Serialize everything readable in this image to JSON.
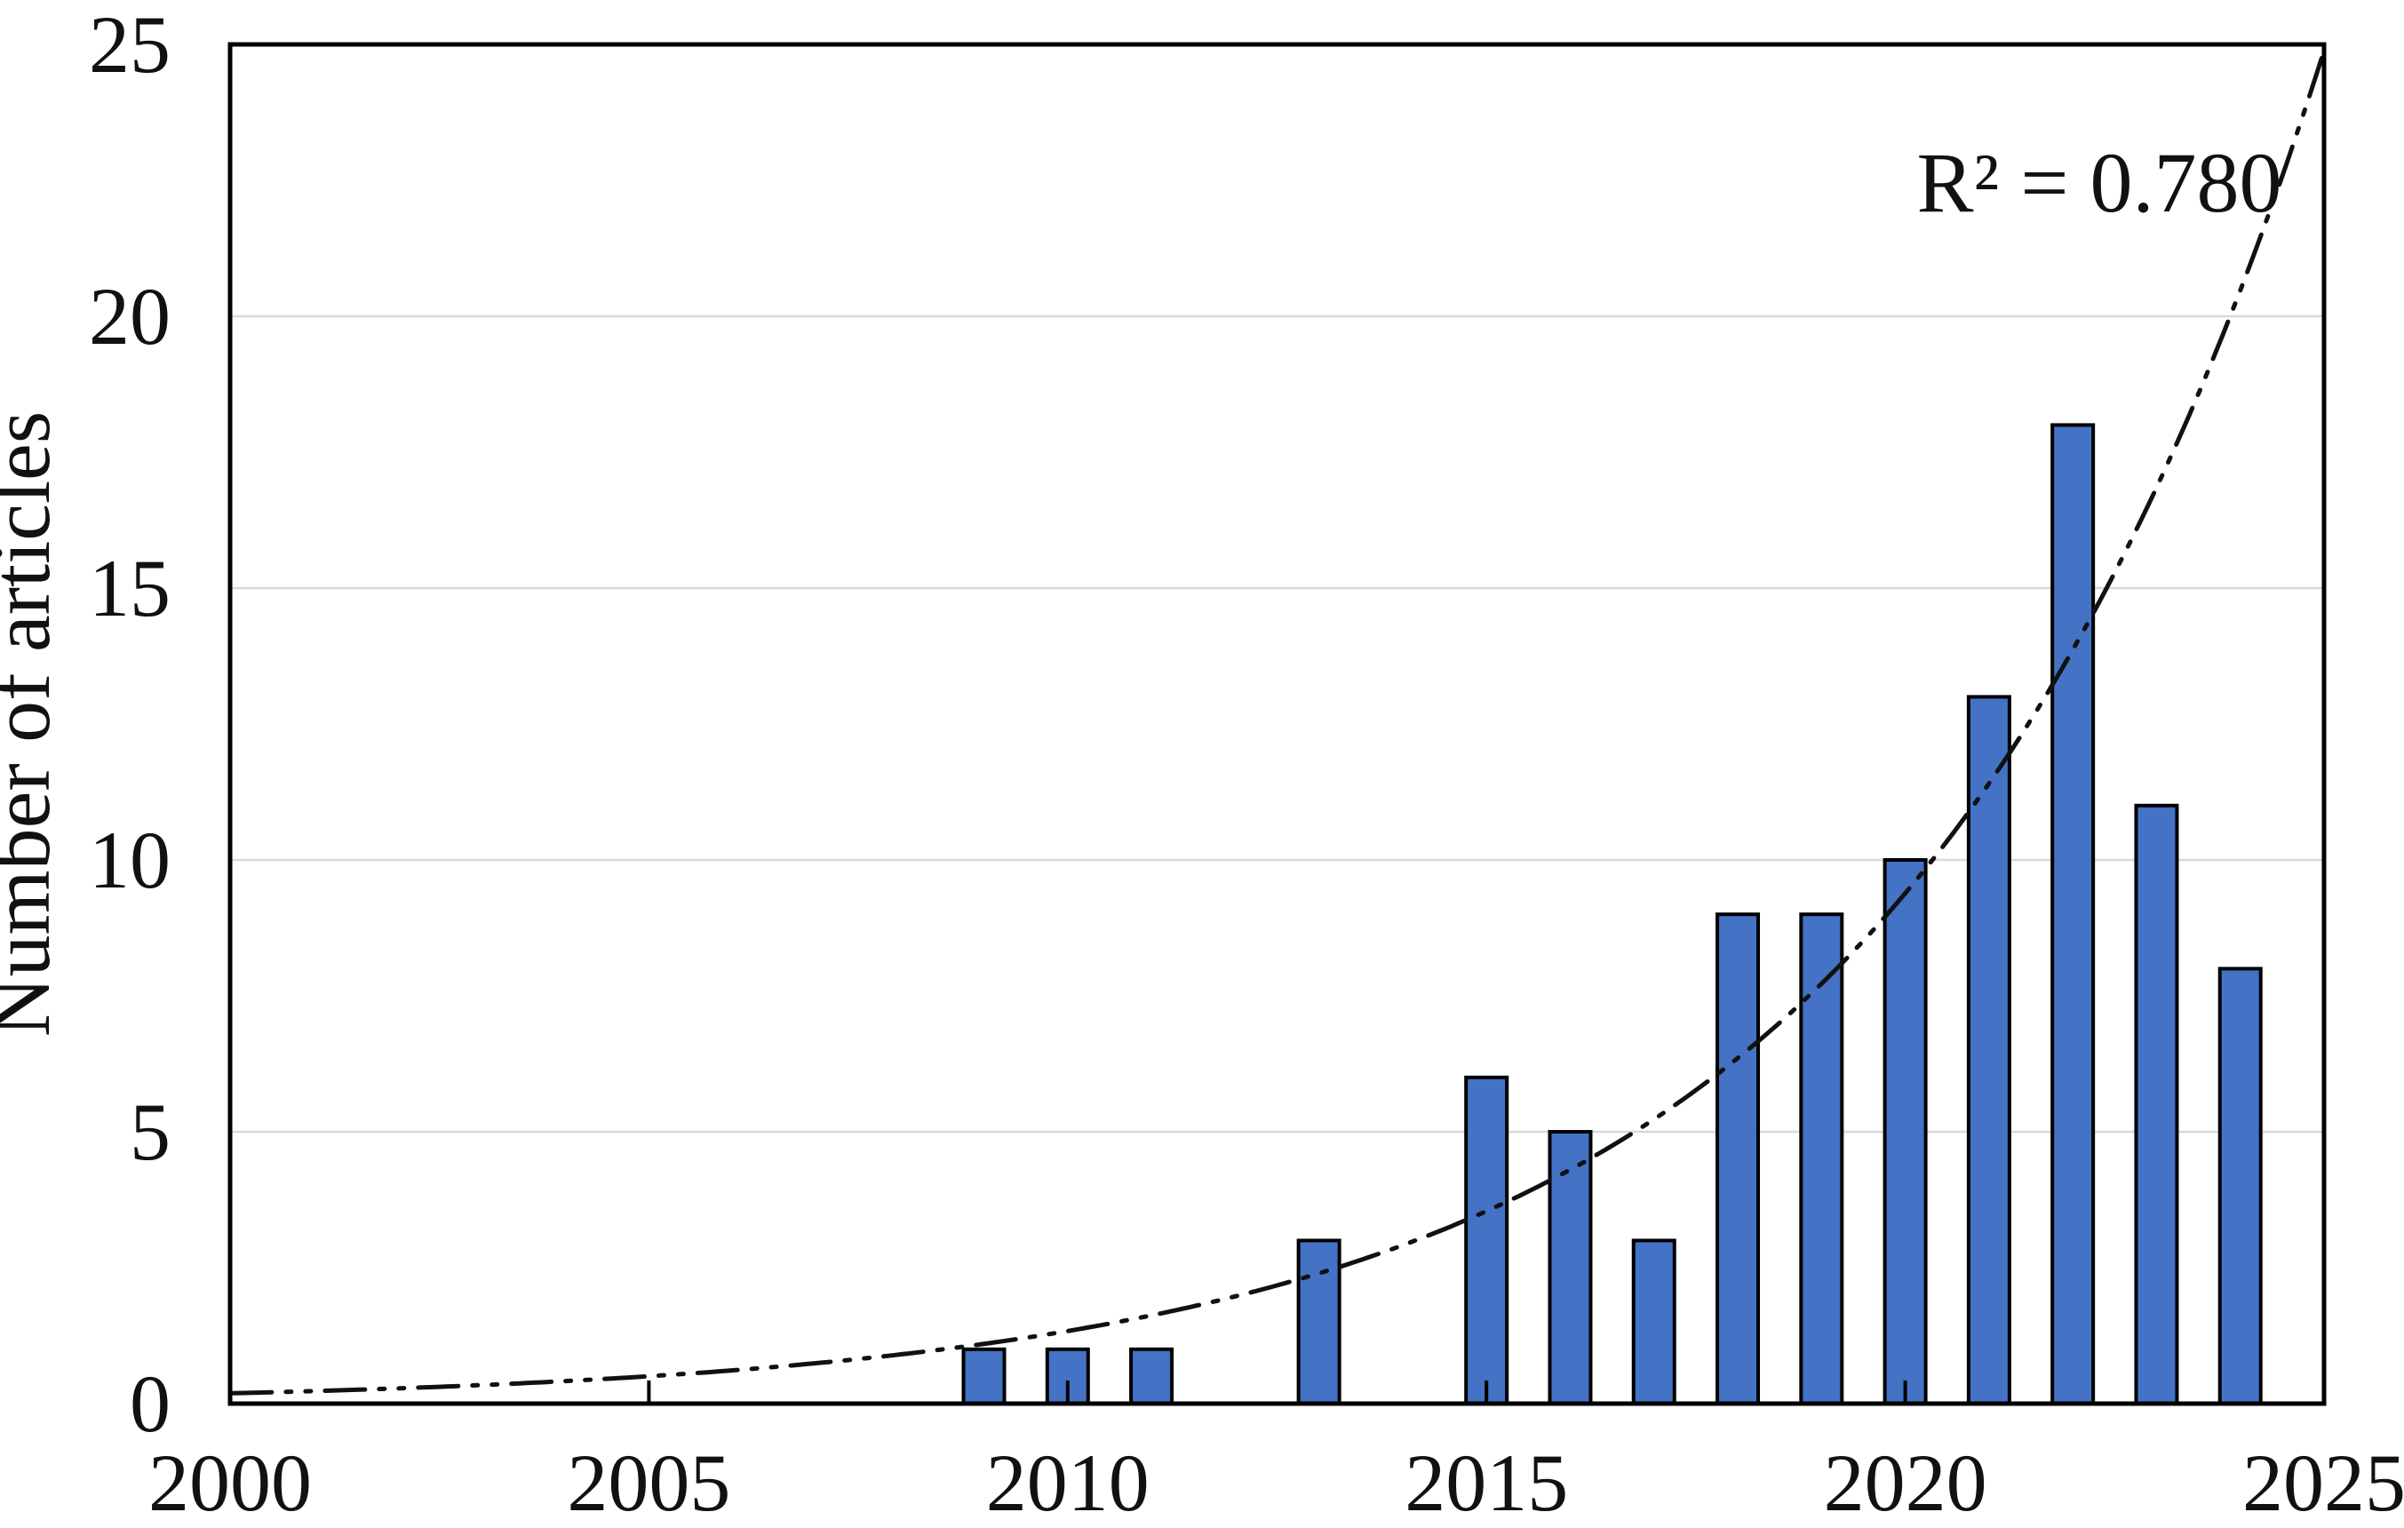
{
  "chart_data": {
    "type": "bar",
    "title": "",
    "xlabel": "",
    "ylabel": "Number of articles",
    "annotation": "R² = 0.780",
    "xlim": [
      2000,
      2025
    ],
    "ylim": [
      0,
      25
    ],
    "x_ticks": [
      2000,
      2005,
      2010,
      2015,
      2020,
      2025
    ],
    "y_ticks": [
      0,
      5,
      10,
      15,
      20,
      25
    ],
    "grid": "horizontal-only",
    "legend": "none",
    "categories": [
      2009,
      2010,
      2011,
      2013,
      2015,
      2016,
      2017,
      2018,
      2019,
      2020,
      2021,
      2022,
      2023,
      2024
    ],
    "values": [
      1,
      1,
      1,
      3,
      6,
      5,
      3,
      9,
      9,
      10,
      13,
      18,
      11,
      8
    ],
    "trendline": {
      "style": "long-dash-dot-dot",
      "shape": "exponential",
      "r_squared": 0.78,
      "fit_a": 0.19,
      "fit_b": 0.195
    },
    "colors": {
      "bar_fill": "#4472C4",
      "bar_border": "#000000",
      "gridline": "#D9D9D9",
      "axis": "#000000",
      "trendline": "#111111",
      "text": "#111111",
      "background": "#FFFFFF"
    }
  }
}
